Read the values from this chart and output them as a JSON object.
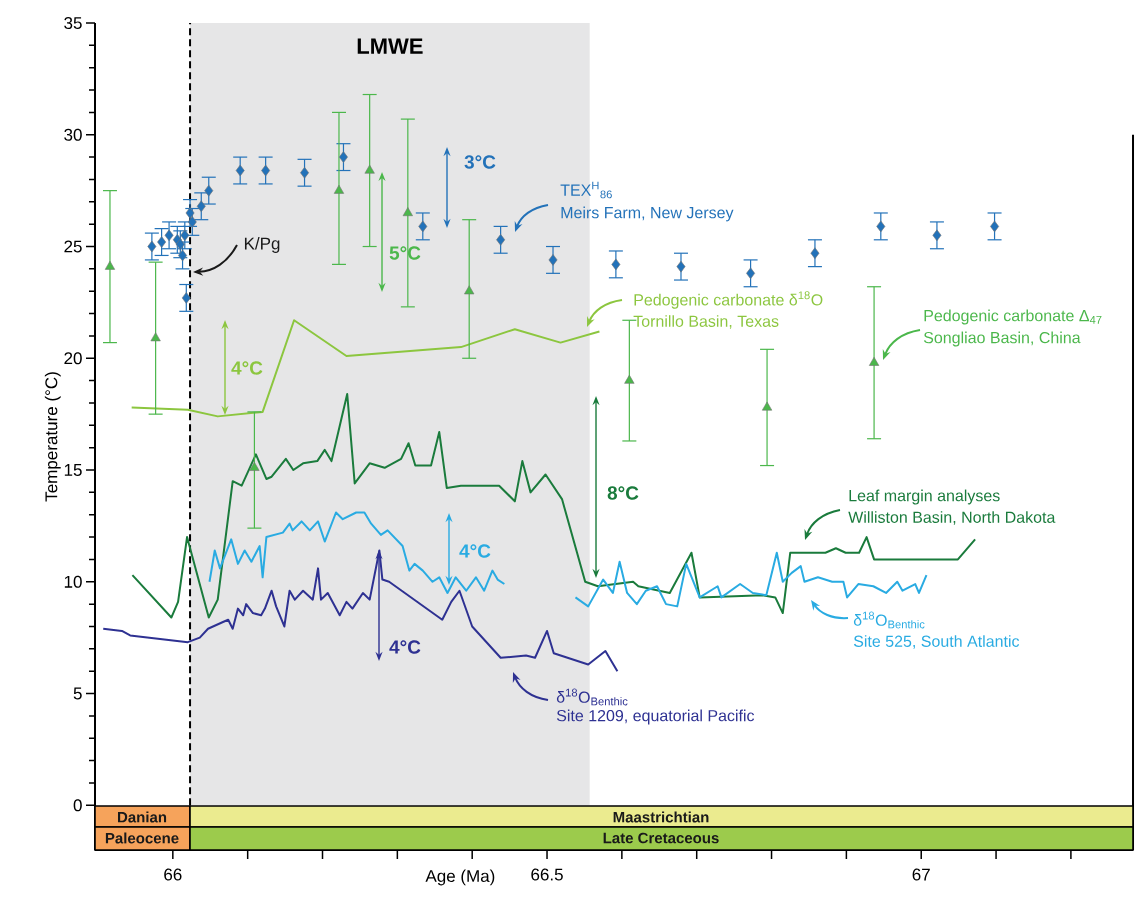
{
  "chart_data": {
    "type": "line",
    "xlabel": "Age (Ma)",
    "ylabel": "Temperature (°C)",
    "xlim": [
      65.896,
      67.283
    ],
    "ylim": [
      -2,
      35
    ],
    "xticks": [
      66,
      {
        "value": 66.1,
        "label": null
      },
      {
        "value": 66.2,
        "label": null
      },
      {
        "value": 66.3,
        "label": null
      },
      {
        "value": 66.4,
        "label": null
      },
      66.5,
      {
        "value": 66.6,
        "label": null
      },
      {
        "value": 66.7,
        "label": null
      },
      {
        "value": 66.8,
        "label": null
      },
      {
        "value": 66.9,
        "label": null
      },
      67,
      {
        "value": 67.1,
        "label": null
      },
      {
        "value": 67.2,
        "label": null
      }
    ],
    "yticks": [
      0,
      5,
      10,
      15,
      20,
      25,
      30,
      35
    ],
    "bands": [
      {
        "axis": "x",
        "from": 66.023,
        "to": 66.557,
        "label": "LMWE",
        "color": "#e6e6e7"
      }
    ],
    "ref_lines": [
      {
        "axis": "x",
        "value": 66.023,
        "color": "#000000",
        "line_style": "dashed"
      }
    ],
    "series": [
      {
        "type": "scatter",
        "color": "#2372b9",
        "marker": "diamond",
        "x": [
          65.972,
          65.985,
          65.995,
          66.006,
          66.01,
          66.016,
          66.013,
          66.023,
          66.026,
          66.038,
          66.048,
          66.018,
          66.09,
          66.124,
          66.176,
          66.228,
          66.334,
          66.438,
          66.508,
          66.592,
          66.679,
          66.772,
          66.858,
          66.946,
          67.021,
          67.098
        ],
        "values": [
          25.0,
          25.2,
          25.5,
          25.3,
          25.1,
          25.5,
          24.6,
          26.5,
          26.1,
          26.8,
          27.5,
          22.7,
          28.4,
          28.4,
          28.3,
          29.0,
          25.9,
          25.3,
          24.4,
          24.2,
          24.1,
          23.8,
          24.7,
          25.9,
          25.5,
          25.9
        ],
        "errors": [
          0.6,
          0.6,
          0.6,
          0.6,
          0.6,
          0.6,
          0.6,
          0.6,
          0.6,
          0.6,
          0.6,
          0.6,
          0.6,
          0.6,
          0.6,
          0.6,
          0.6,
          0.6,
          0.6,
          0.6,
          0.6,
          0.6,
          0.6,
          0.6,
          0.6,
          0.6
        ]
      },
      {
        "type": "scatter",
        "color": "#4bb74b",
        "marker": "triangle",
        "x": [
          65.916,
          65.977,
          66.109,
          66.222,
          66.263,
          66.314,
          66.396,
          66.61,
          66.794,
          66.937
        ],
        "values": [
          24.1,
          20.9,
          15.1,
          27.5,
          28.4,
          26.5,
          23.0,
          19.0,
          17.8,
          19.8
        ],
        "errors": [
          [
            20.7,
            27.5
          ],
          [
            17.5,
            24.3
          ],
          [
            12.4,
            17.6
          ],
          [
            24.2,
            31.0
          ],
          [
            25.0,
            31.8
          ],
          [
            22.3,
            30.7
          ],
          [
            20.0,
            26.2
          ],
          [
            16.3,
            21.7
          ],
          [
            15.2,
            20.4
          ],
          [
            16.4,
            23.2
          ]
        ]
      },
      {
        "color": "#8cc63f",
        "x": [
          65.945,
          66.02,
          66.06,
          66.12,
          66.162,
          66.232,
          66.385,
          66.457,
          66.518,
          66.57
        ],
        "values": [
          17.8,
          17.7,
          17.4,
          17.6,
          21.7,
          20.1,
          20.5,
          21.3,
          20.7,
          21.2
        ]
      },
      {
        "color": "#1a7b3c",
        "x": [
          65.946,
          65.998,
          66.007,
          66.019,
          66.048,
          66.06,
          66.08,
          66.092,
          66.111,
          66.125,
          66.132,
          66.151,
          66.161,
          66.174,
          66.193,
          66.203,
          66.212,
          66.233,
          66.243,
          66.263,
          66.283,
          66.305,
          66.315,
          66.324,
          66.345,
          66.356,
          66.366,
          66.385,
          66.436,
          66.457,
          66.467,
          66.478,
          66.498,
          66.52,
          66.551,
          66.568,
          66.615,
          66.622,
          66.664,
          66.693,
          66.704,
          66.788,
          66.805,
          66.815,
          66.825,
          66.872,
          66.886,
          66.899,
          66.917,
          66.927,
          66.937,
          67.049,
          67.072
        ],
        "values": [
          10.3,
          8.4,
          9.1,
          12.0,
          8.4,
          9.2,
          14.5,
          14.3,
          15.7,
          14.6,
          14.7,
          15.5,
          15.0,
          15.3,
          15.4,
          15.9,
          15.4,
          18.4,
          14.4,
          15.3,
          15.1,
          15.5,
          16.2,
          15.2,
          15.2,
          16.7,
          14.2,
          14.3,
          14.3,
          13.6,
          15.4,
          14.0,
          14.8,
          13.7,
          10.0,
          9.8,
          10.0,
          9.8,
          9.5,
          11.3,
          9.3,
          9.4,
          9.3,
          8.6,
          11.3,
          11.3,
          11.5,
          11.3,
          11.3,
          12.0,
          11.0,
          11.0,
          11.9
        ]
      },
      {
        "color": "#29abe2",
        "x": [
          66.049,
          66.056,
          66.063,
          66.078,
          66.087,
          66.096,
          66.105,
          66.116,
          66.12,
          66.125,
          66.147,
          66.156,
          66.16,
          66.172,
          66.183,
          66.194,
          66.203,
          66.218,
          66.227,
          66.245,
          66.256,
          66.265,
          66.278,
          66.287,
          66.307,
          66.316,
          66.323,
          66.334,
          66.347,
          66.356,
          66.367,
          66.378,
          66.392,
          66.405,
          66.416,
          66.427,
          66.434,
          66.443,
          66.49,
          66.538,
          66.555,
          66.575,
          66.588,
          66.597,
          66.607,
          66.62,
          66.632,
          66.647,
          66.659,
          66.674,
          66.686,
          66.704,
          66.728,
          66.733,
          66.758,
          66.775,
          66.793,
          66.807,
          66.815,
          66.827,
          66.839,
          66.844,
          66.862,
          66.881,
          66.896,
          66.901,
          66.916,
          66.936,
          66.953,
          66.968,
          66.975,
          66.992,
          66.997,
          67.007
        ],
        "values": [
          10.0,
          11.4,
          10.6,
          11.9,
          10.8,
          11.4,
          10.9,
          11.6,
          10.2,
          12.0,
          12.2,
          12.6,
          12.3,
          12.7,
          12.3,
          12.7,
          11.8,
          13.1,
          12.8,
          13.1,
          13.1,
          12.6,
          12.1,
          12.3,
          11.6,
          10.5,
          10.8,
          10.5,
          10.0,
          10.2,
          9.5,
          10.2,
          9.6,
          10.2,
          9.6,
          10.5,
          10.1,
          9.9,
          null,
          9.3,
          8.9,
          10.1,
          9.5,
          10.9,
          9.5,
          9.0,
          9.6,
          9.8,
          9.0,
          8.9,
          10.8,
          9.3,
          9.8,
          9.3,
          9.9,
          9.5,
          9.4,
          11.3,
          10.0,
          10.4,
          10.7,
          10.0,
          10.2,
          10.0,
          10.0,
          9.3,
          9.9,
          9.8,
          9.5,
          10.0,
          9.6,
          9.9,
          9.5,
          10.3
        ]
      },
      {
        "color": "#2e3192",
        "x": [
          65.907,
          65.932,
          65.943,
          66.02,
          66.036,
          66.047,
          66.067,
          66.074,
          66.08,
          66.087,
          66.094,
          66.098,
          66.107,
          66.118,
          66.123,
          66.132,
          66.138,
          66.149,
          66.156,
          66.163,
          66.174,
          66.187,
          66.194,
          66.198,
          66.207,
          66.223,
          66.232,
          66.24,
          66.254,
          66.263,
          66.276,
          66.28,
          66.289,
          66.36,
          66.372,
          66.383,
          66.4,
          66.438,
          66.472,
          66.484,
          66.5,
          66.509,
          66.555,
          66.578,
          66.594
        ],
        "values": [
          7.9,
          7.8,
          7.6,
          7.3,
          7.5,
          7.9,
          8.2,
          8.3,
          7.9,
          8.8,
          8.5,
          9.0,
          8.6,
          8.5,
          8.8,
          9.6,
          8.9,
          8.0,
          9.6,
          9.2,
          9.6,
          9.2,
          10.6,
          9.2,
          9.5,
          8.5,
          9.1,
          8.8,
          9.5,
          9.2,
          11.4,
          10.1,
          10.0,
          8.3,
          9.1,
          9.6,
          8.0,
          6.6,
          6.7,
          6.6,
          7.8,
          6.8,
          6.3,
          6.9,
          6.0
        ]
      }
    ],
    "annotations": [
      "3°C",
      "5°C",
      "4°C",
      "8°C",
      "4°C",
      {
        "text": "4°C",
        "x": 66.275,
        "y": 11.4
      },
      "K/Pg",
      "TEX$^{H}$$_{86}$",
      "Meirs Farm, New Jersey",
      "Pedogenic carbonate δ$^{18}$O",
      "Tornillo Basin, Texas",
      "Pedogenic carbonate Δ$_{47}$",
      "Songliao Basin, China",
      "Leaf margin analyses",
      "Williston Basin, North Dakota",
      "δ$^{18}$O$_{Benthic}$",
      "Site 525, South Atlantic",
      "δ$^{18}$O$_{Benthic}$",
      "Site 1209, equatorial Pacific",
      "Danian",
      "Paleocene",
      "Maastrichtian",
      "Late Cretaceous"
    ]
  }
}
